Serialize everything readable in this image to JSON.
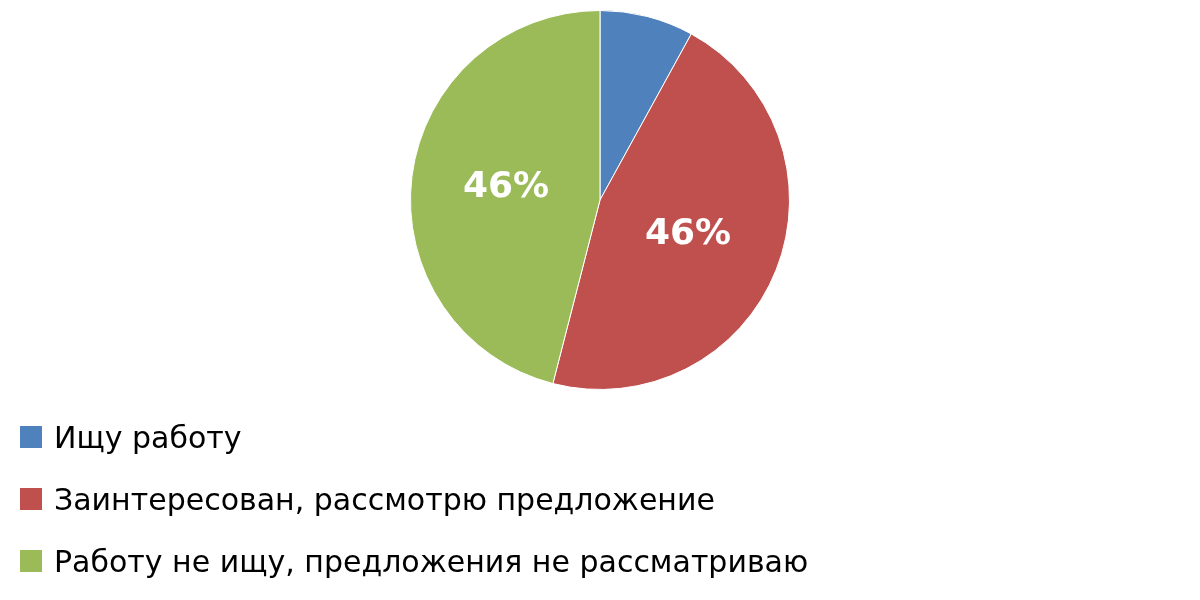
{
  "chart_data": {
    "type": "pie",
    "categories": [
      "Ищу работу",
      "Заинтересован, рассмотрю предложение",
      "Работу не ищу, предложения не рассматриваю"
    ],
    "values": [
      8,
      46,
      46
    ],
    "colors": [
      "#4f81bd",
      "#c0504d",
      "#9bbb59"
    ],
    "value_labels": [
      null,
      "46%",
      "46%"
    ],
    "legend": "bottom"
  }
}
